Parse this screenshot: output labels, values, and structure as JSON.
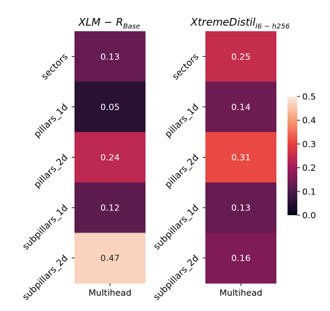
{
  "chart_data": [
    {
      "type": "heatmap",
      "title_main": "XLM − R",
      "title_sub": "Base",
      "rows": [
        "sectors",
        "pillars_1d",
        "pillars_2d",
        "subpillars_1d",
        "subpillars_2d"
      ],
      "columns": [
        "Multihead"
      ],
      "values": [
        0.13,
        0.05,
        0.24,
        0.12,
        0.47
      ],
      "value_labels": [
        "0.13",
        "0.05",
        "0.24",
        "0.12",
        "0.47"
      ]
    },
    {
      "type": "heatmap",
      "title_main": "XtremeDistil",
      "title_sub": "l6 − h256",
      "rows": [
        "sectors",
        "pillars_1d",
        "pillars_2d",
        "subpillars_1d",
        "subpillars_2d"
      ],
      "columns": [
        "Multihead"
      ],
      "values": [
        0.25,
        0.14,
        0.31,
        0.13,
        0.16
      ],
      "value_labels": [
        "0.25",
        "0.14",
        "0.31",
        "0.13",
        "0.16"
      ]
    }
  ],
  "colorbar": {
    "range": [
      0.0,
      0.5
    ],
    "ticks": [
      "0.0",
      "0.1",
      "0.2",
      "0.3",
      "0.4",
      "0.5"
    ],
    "colormap": "rocket",
    "stops": [
      "#03051a",
      "#4c1d4b",
      "#a11a5b",
      "#e83f3f",
      "#f69c73",
      "#faebdd"
    ]
  }
}
